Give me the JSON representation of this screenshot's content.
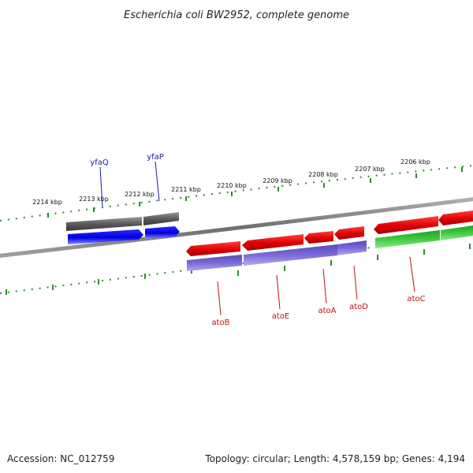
{
  "title": "Escherichia coli BW2952, complete genome",
  "footer": {
    "accession": "Accession: NC_012759",
    "summary": "Topology: circular; Length: 4,578,159 bp; Genes: 4,194"
  },
  "colors": {
    "backbone": "#8a8a8a",
    "ruler": "#2e8b2e",
    "gray_feature": "#666666",
    "blue_feature": "#1010e0",
    "red_feature": "#e01010",
    "purple_feature": "#7a6ad8",
    "green_feature": "#3cc83c",
    "label_blue": "#1a1aa0",
    "label_red": "#c01010"
  },
  "ruler_ticks": [
    {
      "label": "2214 kbp"
    },
    {
      "label": "2213 kbp"
    },
    {
      "label": "2212 kbp"
    },
    {
      "label": "2211 kbp"
    },
    {
      "label": "2210 kbp"
    },
    {
      "label": "2209 kbp"
    },
    {
      "label": "2208 kbp"
    },
    {
      "label": "2207 kbp"
    },
    {
      "label": "2206 kbp"
    }
  ],
  "gene_labels": [
    {
      "name": "yfaQ",
      "color": "#1a1aa0"
    },
    {
      "name": "yfaP",
      "color": "#1a1aa0"
    },
    {
      "name": "atoB",
      "color": "#c01010"
    },
    {
      "name": "atoE",
      "color": "#c01010"
    },
    {
      "name": "atoA",
      "color": "#c01010"
    },
    {
      "name": "atoD",
      "color": "#c01010"
    },
    {
      "name": "atoC",
      "color": "#c01010"
    }
  ]
}
